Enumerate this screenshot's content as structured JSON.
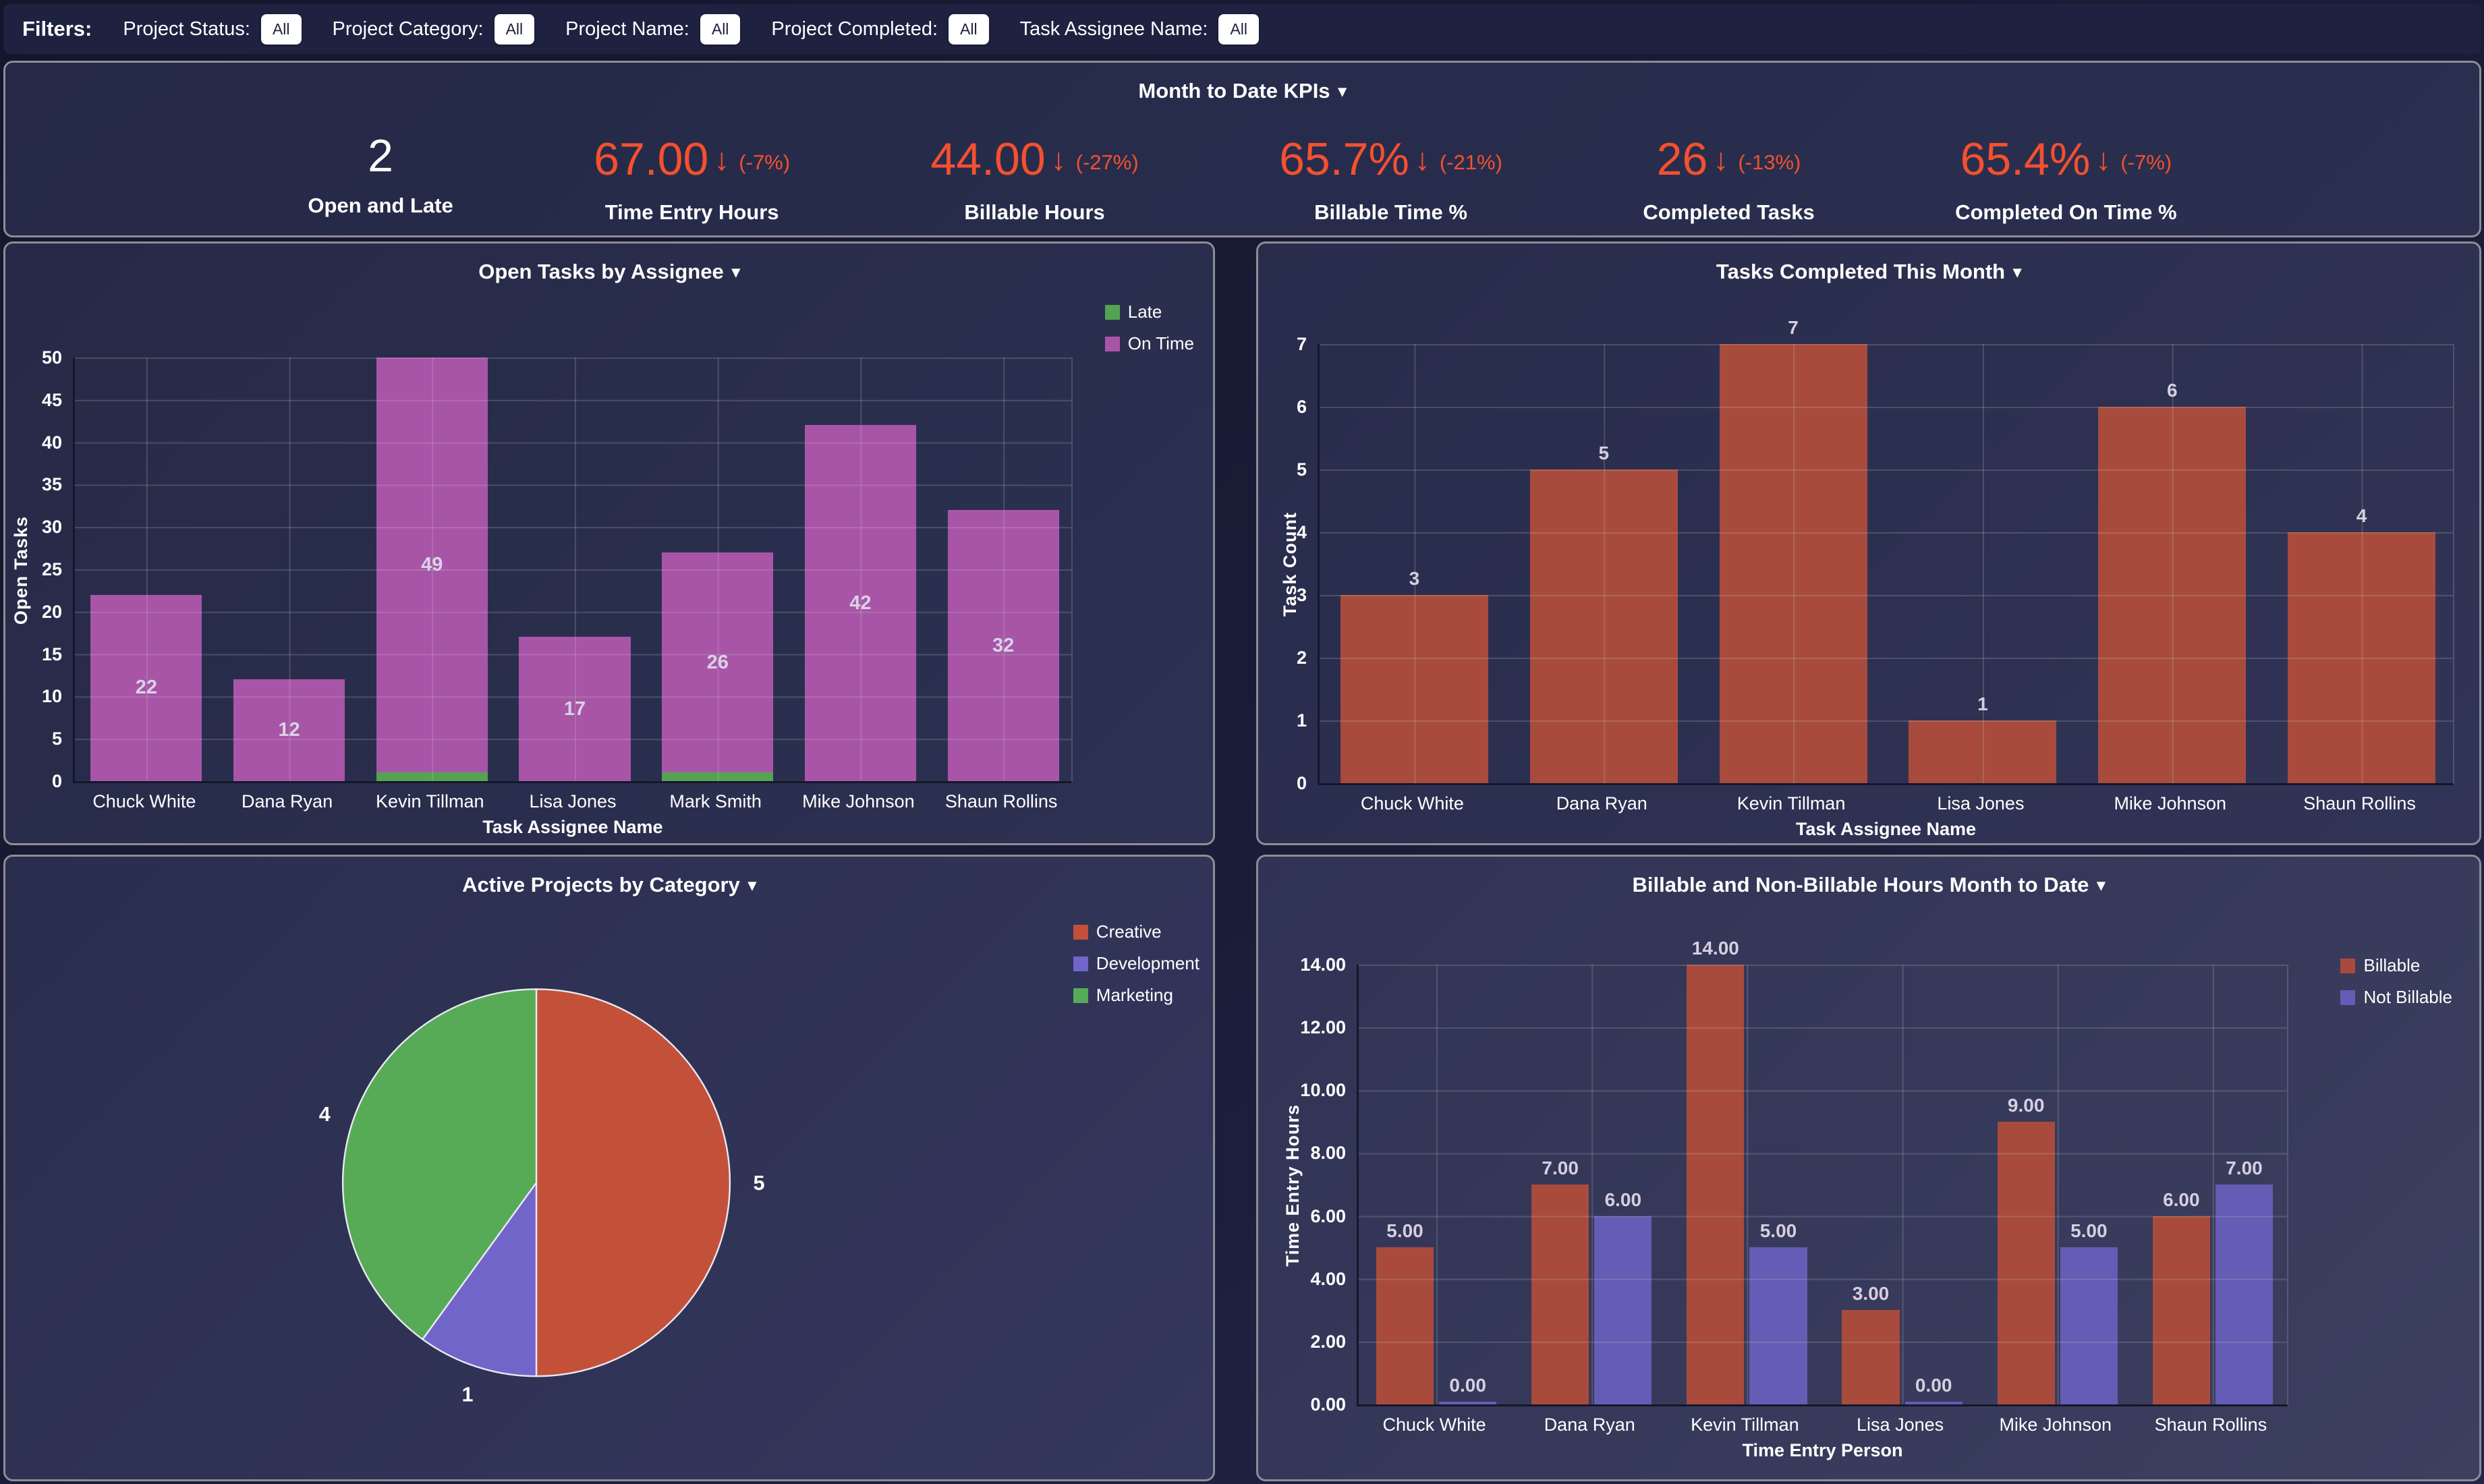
{
  "icons": {
    "caret_down": "▾",
    "down_arrow": "↓"
  },
  "filters": {
    "title": "Filters:",
    "items": [
      {
        "label": "Project Status:",
        "value": "All"
      },
      {
        "label": "Project Category:",
        "value": "All"
      },
      {
        "label": "Project Name:",
        "value": "All"
      },
      {
        "label": "Project Completed:",
        "value": "All"
      },
      {
        "label": "Task Assignee Name:",
        "value": "All"
      }
    ]
  },
  "kpi_panel": {
    "title": "Month to Date KPIs",
    "kpis": [
      {
        "value": "2",
        "arrow": "",
        "delta": "",
        "label": "Open and Late"
      },
      {
        "value": "67.00",
        "arrow": "↓",
        "delta": "(-7%)",
        "label": "Time Entry Hours"
      },
      {
        "value": "44.00",
        "arrow": "↓",
        "delta": "(-27%)",
        "label": "Billable Hours"
      },
      {
        "value": "65.7%",
        "arrow": "↓",
        "delta": "(-21%)",
        "label": "Billable Time %"
      },
      {
        "value": "26",
        "arrow": "↓",
        "delta": "(-13%)",
        "label": "Completed Tasks"
      },
      {
        "value": "65.4%",
        "arrow": "↓",
        "delta": "(-7%)",
        "label": "Completed On Time %"
      }
    ]
  },
  "chart_data": [
    {
      "id": "open-tasks",
      "type": "bar",
      "stacked": true,
      "title": "Open Tasks by Assignee",
      "xlabel": "Task Assignee Name",
      "ylabel": "Open Tasks",
      "ylim": [
        0,
        50
      ],
      "y_ticks": [
        "0",
        "5",
        "10",
        "15",
        "20",
        "25",
        "30",
        "35",
        "40",
        "45",
        "50"
      ],
      "grid": true,
      "legend_position": "top-right",
      "categories": [
        "Chuck White",
        "Dana Ryan",
        "Kevin Tillman",
        "Lisa Jones",
        "Mark Smith",
        "Mike Johnson",
        "Shaun Rollins"
      ],
      "series": [
        {
          "name": "Late",
          "color": "#54a254",
          "values": [
            0,
            0,
            1,
            0,
            1,
            0,
            0
          ]
        },
        {
          "name": "On Time",
          "color": "#a855a8",
          "values": [
            22,
            12,
            49,
            17,
            26,
            42,
            32
          ],
          "labels": [
            "22",
            "12",
            "49",
            "17",
            "26",
            "42",
            "32"
          ]
        }
      ]
    },
    {
      "id": "tasks-completed",
      "type": "bar",
      "title": "Tasks Completed This Month",
      "xlabel": "Task Assignee Name",
      "ylabel": "Task Count",
      "ylim": [
        0,
        7
      ],
      "y_ticks": [
        "0",
        "1",
        "2",
        "3",
        "4",
        "5",
        "6",
        "7"
      ],
      "grid": true,
      "categories": [
        "Chuck White",
        "Dana Ryan",
        "Kevin Tillman",
        "Lisa Jones",
        "Mike Johnson",
        "Shaun Rollins"
      ],
      "series": [
        {
          "name": "Task Count",
          "color": "#a84b3d",
          "values": [
            3,
            5,
            7,
            1,
            6,
            4
          ],
          "labels": [
            "3",
            "5",
            "7",
            "1",
            "6",
            "4"
          ]
        }
      ]
    },
    {
      "id": "projects-by-category",
      "type": "pie",
      "title": "Active Projects by Category",
      "legend_position": "top-right",
      "slices": [
        {
          "label": "Creative",
          "value": 5,
          "color": "#c3513a"
        },
        {
          "label": "Development",
          "value": 1,
          "color": "#7265ca"
        },
        {
          "label": "Marketing",
          "value": 4,
          "color": "#57ab57"
        }
      ],
      "labels": [
        "5",
        "1",
        "4"
      ]
    },
    {
      "id": "billable-hours",
      "type": "bar",
      "grouped": true,
      "title": "Billable and Non-Billable Hours Month to Date",
      "xlabel": "Time Entry Person",
      "ylabel": "Time Entry Hours",
      "ylim": [
        0,
        14
      ],
      "y_ticks": [
        "0.00",
        "2.00",
        "4.00",
        "6.00",
        "8.00",
        "10.00",
        "12.00",
        "14.00"
      ],
      "grid": true,
      "legend_position": "top-right",
      "categories": [
        "Chuck White",
        "Dana Ryan",
        "Kevin Tillman",
        "Lisa Jones",
        "Mike Johnson",
        "Shaun Rollins"
      ],
      "series": [
        {
          "name": "Billable",
          "color": "#a84b3d",
          "values": [
            5,
            7,
            14,
            3,
            9,
            6
          ],
          "labels": [
            "5.00",
            "7.00",
            "14.00",
            "3.00",
            "9.00",
            "6.00"
          ]
        },
        {
          "name": "Not Billable",
          "color": "#655cb5",
          "values": [
            0,
            6,
            5,
            0,
            5,
            7
          ],
          "labels": [
            "0.00",
            "6.00",
            "5.00",
            "0.00",
            "5.00",
            "7.00"
          ]
        }
      ]
    }
  ]
}
